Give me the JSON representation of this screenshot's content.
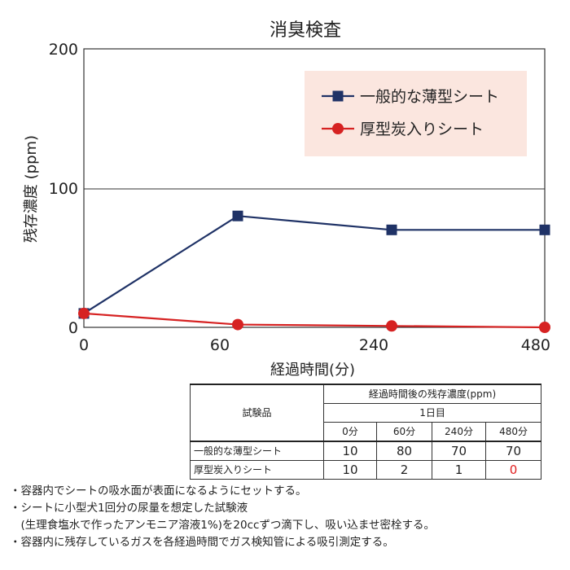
{
  "chart_data": {
    "type": "line",
    "title": "消臭検査",
    "xlabel": "経過時間(分)",
    "ylabel": "残存濃度 (ppm)",
    "categories": [
      "0",
      "60",
      "240",
      "480"
    ],
    "ylim": [
      0,
      200
    ],
    "yticks": [
      "200",
      "100",
      "0"
    ],
    "grid": "horizontal",
    "legend_placement": "top-right",
    "series": [
      {
        "name": "一般的な薄型シート",
        "values": [
          10,
          80,
          70,
          70
        ],
        "color": "#1f3266",
        "marker": "square"
      },
      {
        "name": "厚型炭入りシート",
        "values": [
          10,
          2,
          1,
          0
        ],
        "color": "#d62222",
        "marker": "circle"
      }
    ],
    "legend_bg": "#fbe6df"
  },
  "table": {
    "corner": "試験品",
    "header_main": "経過時間後の残存濃度(ppm)",
    "header_day": "1日目",
    "time_cols": [
      "0分",
      "60分",
      "240分",
      "480分"
    ],
    "rows": [
      {
        "label": "一般的な薄型シート",
        "values": [
          "10",
          "80",
          "70",
          "70"
        ]
      },
      {
        "label": "厚型炭入りシート",
        "values": [
          "10",
          "2",
          "1",
          "0"
        ]
      }
    ],
    "highlight_color": "#e02020"
  },
  "notes": [
    "・容器内でシートの吸水面が表面になるようにセットする。",
    "・シートに小型犬1回分の尿量を想定した試験液",
    "　(生理食塩水で作ったアンモニア溶液1%)を20ccずつ滴下し、吸い込ませ密栓する。",
    "・容器内に残存しているガスを各経過時間でガス検知管による吸引測定する。"
  ]
}
